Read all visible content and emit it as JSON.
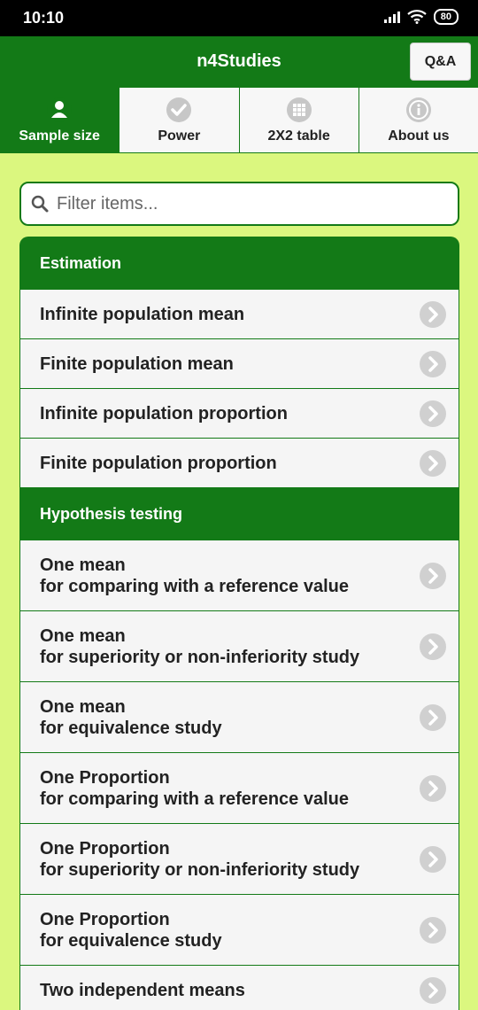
{
  "status": {
    "time": "10:10",
    "battery": "80"
  },
  "appbar": {
    "title": "n4Studies",
    "qa_label": "Q&A"
  },
  "tabs": [
    {
      "label": "Sample size",
      "icon": "person-icon",
      "active": true
    },
    {
      "label": "Power",
      "icon": "check-circle-icon",
      "active": false
    },
    {
      "label": "2X2 table",
      "icon": "grid-icon",
      "active": false
    },
    {
      "label": "About us",
      "icon": "info-icon",
      "active": false
    }
  ],
  "search": {
    "placeholder": "Filter items..."
  },
  "groups": [
    {
      "header": "Estimation",
      "items": [
        {
          "l1": "Infinite population mean"
        },
        {
          "l1": "Finite population mean"
        },
        {
          "l1": "Infinite population proportion"
        },
        {
          "l1": "Finite population proportion"
        }
      ]
    },
    {
      "header": "Hypothesis testing",
      "items": [
        {
          "l1": "One mean",
          "l2": "for comparing with a reference value"
        },
        {
          "l1": "One mean",
          "l2": "for superiority or non-inferiority study"
        },
        {
          "l1": "One mean",
          "l2": "for equivalence study"
        },
        {
          "l1": "One Proportion",
          "l2": "for comparing with a reference value"
        },
        {
          "l1": "One Proportion",
          "l2": "for superiority or non-inferiority study"
        },
        {
          "l1": "One Proportion",
          "l2": "for equivalence study"
        },
        {
          "l1": "Two independent means"
        }
      ]
    }
  ]
}
